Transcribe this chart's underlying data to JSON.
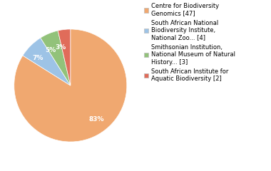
{
  "slices": [
    47,
    4,
    3,
    2
  ],
  "pct_labels": [
    "83%",
    "7%",
    "5%",
    "3%"
  ],
  "colors": [
    "#f0a870",
    "#9dc3e6",
    "#92c27a",
    "#e06c5a"
  ],
  "legend_labels": [
    "Centre for Biodiversity\nGenomics [47]",
    "South African National\nBiodiversity Institute,\nNational Zoo... [4]",
    "Smithsonian Institution,\nNational Museum of Natural\nHistory... [3]",
    "South African Institute for\nAquatic Biodiversity [2]"
  ],
  "startangle": 90,
  "label_fontsize": 6.5,
  "legend_fontsize": 6.0,
  "bg_color": "#ffffff"
}
